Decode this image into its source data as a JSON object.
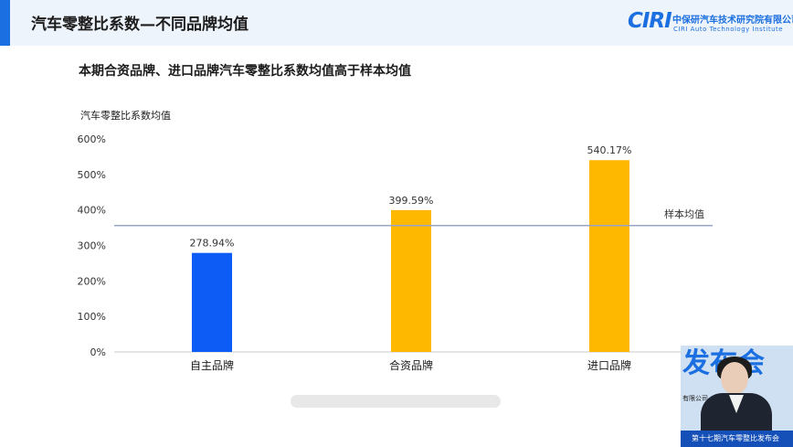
{
  "header": {
    "title": "汽车零整比系数—不同品牌均值",
    "logo_mark": "CIRI",
    "logo_name": "中保研汽车技术研究院有限公司",
    "logo_sub": "CIRI Auto Technology Institute"
  },
  "subtitle": "本期合资品牌、进口品牌汽车零整比系数均值高于样本均值",
  "chart_data": {
    "type": "bar",
    "title": "本期合资品牌、进口品牌汽车零整比系数均值高于样本均值",
    "ylabel": "汽车零整比系数均值",
    "xlabel": "",
    "categories": [
      "自主品牌",
      "合资品牌",
      "进口品牌"
    ],
    "values": [
      278.94,
      399.59,
      540.17
    ],
    "value_labels": [
      "278.94%",
      "399.59%",
      "540.17%"
    ],
    "bar_colors": [
      "#0d5cf5",
      "#ffb800",
      "#ffb800"
    ],
    "ylim": [
      0,
      600
    ],
    "yticks": [
      0,
      100,
      200,
      300,
      400,
      500,
      600
    ],
    "ytick_labels": [
      "0%",
      "100%",
      "200%",
      "300%",
      "400%",
      "500%",
      "600%"
    ],
    "reference_line": {
      "label": "样本均值",
      "value": 356,
      "color": "#9aa6c6"
    },
    "grid": false,
    "legend": "none"
  },
  "presenter": {
    "backdrop_text": "发布会",
    "backdrop_small": "有限公司",
    "banner_text": "第十七期汽车零整比发布会"
  }
}
